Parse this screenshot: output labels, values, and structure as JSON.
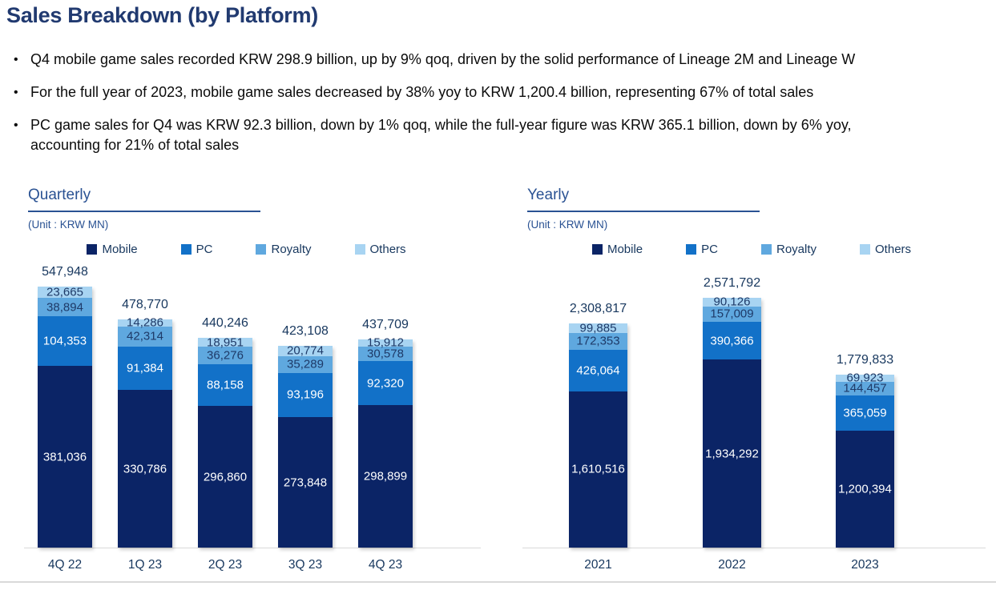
{
  "page": {
    "title": "Sales Breakdown (by Platform)",
    "bullets": [
      "Q4 mobile game sales recorded KRW 298.9 billion, up by 9% qoq, driven by the solid performance of Lineage 2M and Lineage W",
      "For the full year of 2023, mobile game sales decreased by 38% yoy to KRW 1,200.4 billion, representing 67% of total sales",
      "PC game sales for Q4 was KRW 92.3 billion, down by 1% qoq, while the full-year figure was KRW 365.1 billion, down by 6% yoy, accounting for 21% of total sales"
    ]
  },
  "colors": {
    "title_navy": "#213A70",
    "heading_blue": "#2A5293",
    "label_navy": "#17375E",
    "axis_line_gray": "#D9D9D9"
  },
  "chart_data": [
    {
      "type": "bar",
      "stacked": true,
      "title": "Quarterly",
      "unit_label": "(Unit : KRW MN)",
      "legend_position": "top",
      "grid": false,
      "categories": [
        "4Q 22",
        "1Q 23",
        "2Q 23",
        "3Q 23",
        "4Q 23"
      ],
      "series": [
        {
          "name": "Mobile",
          "color": "#0B2466",
          "label_color": "#FFFFFF",
          "values": [
            381036,
            330786,
            296860,
            273848,
            298899
          ]
        },
        {
          "name": "PC",
          "color": "#1271C8",
          "label_color": "#FFFFFF",
          "values": [
            104353,
            91384,
            88158,
            93196,
            92320
          ]
        },
        {
          "name": "Royalty",
          "color": "#5FA8DF",
          "label_color": "#1E3A68",
          "values": [
            38894,
            42314,
            36276,
            35289,
            30578
          ]
        },
        {
          "name": "Others",
          "color": "#A8D4F2",
          "label_color": "#1E3A68",
          "values": [
            23665,
            14286,
            18951,
            20774,
            15912
          ]
        }
      ],
      "totals": [
        547948,
        478770,
        440246,
        423108,
        437709
      ]
    },
    {
      "type": "bar",
      "stacked": true,
      "title": "Yearly",
      "unit_label": "(Unit : KRW MN)",
      "legend_position": "top",
      "grid": false,
      "categories": [
        "2021",
        "2022",
        "2023"
      ],
      "series": [
        {
          "name": "Mobile",
          "color": "#0B2466",
          "label_color": "#FFFFFF",
          "values": [
            1610516,
            1934292,
            1200394
          ]
        },
        {
          "name": "PC",
          "color": "#1271C8",
          "label_color": "#FFFFFF",
          "values": [
            426064,
            390366,
            365059
          ]
        },
        {
          "name": "Royalty",
          "color": "#5FA8DF",
          "label_color": "#1E3A68",
          "values": [
            172353,
            157009,
            144457
          ]
        },
        {
          "name": "Others",
          "color": "#A8D4F2",
          "label_color": "#1E3A68",
          "values": [
            99885,
            90126,
            69923
          ]
        }
      ],
      "totals": [
        2308817,
        2571792,
        1779833
      ]
    }
  ]
}
